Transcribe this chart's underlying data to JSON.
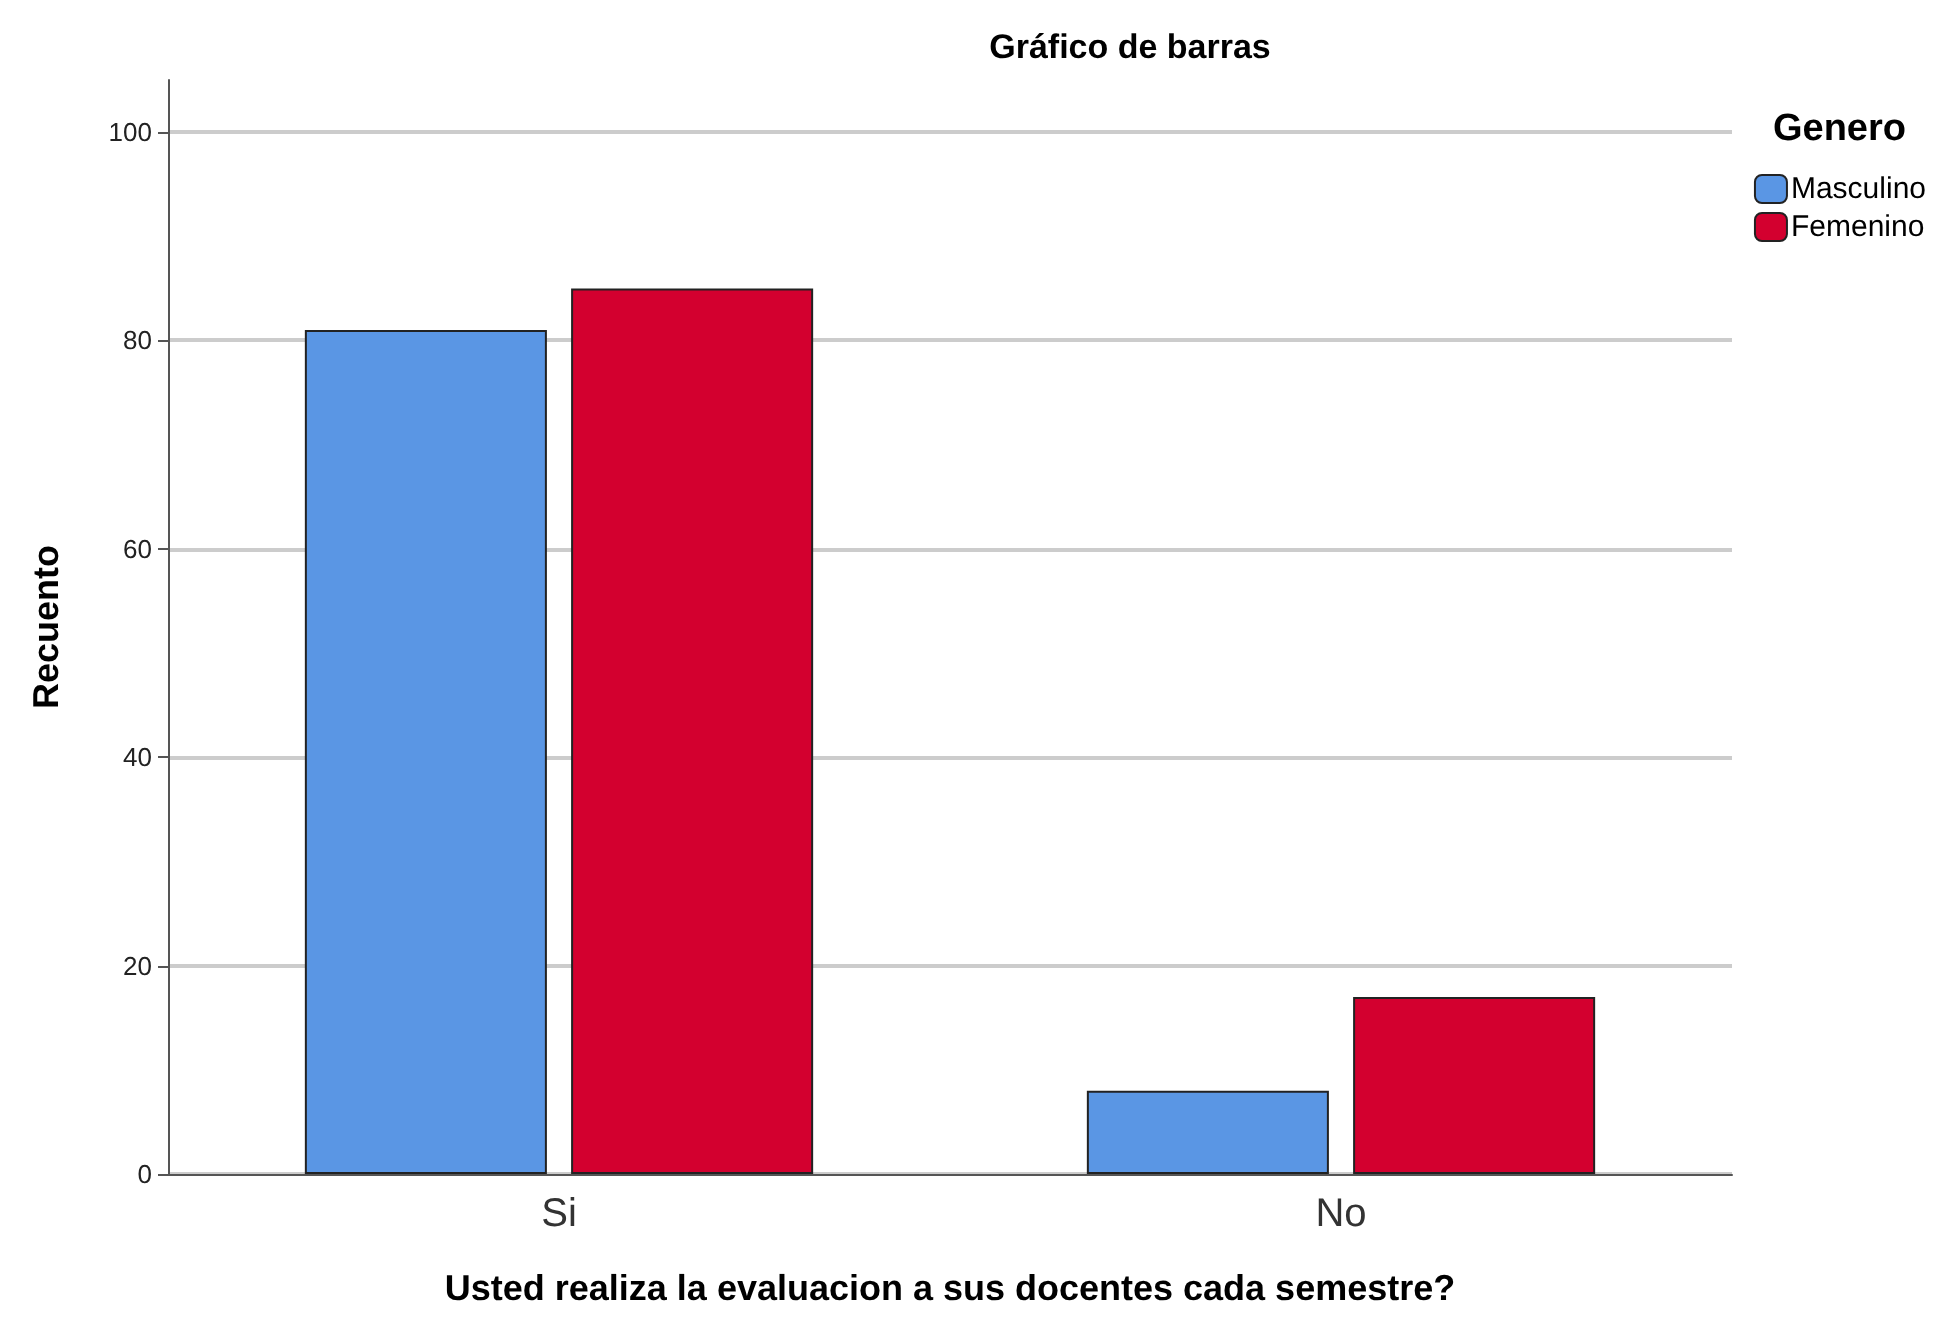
{
  "chart_data": {
    "type": "bar",
    "title": "Gráfico de barras",
    "xlabel": "Usted realiza la evaluacion a sus docentes cada semestre?",
    "ylabel": "Recuento",
    "legend_title": "Genero",
    "categories": [
      "Si",
      "No"
    ],
    "series": [
      {
        "name": "Masculino",
        "color": "#5a96e4",
        "values": [
          81,
          8
        ]
      },
      {
        "name": "Femenino",
        "color": "#d3002f",
        "values": [
          85,
          17
        ]
      }
    ],
    "ylim": [
      0,
      105
    ],
    "yticks": [
      0,
      20,
      40,
      60,
      80,
      100
    ],
    "grid": "y",
    "legend": "top right"
  }
}
